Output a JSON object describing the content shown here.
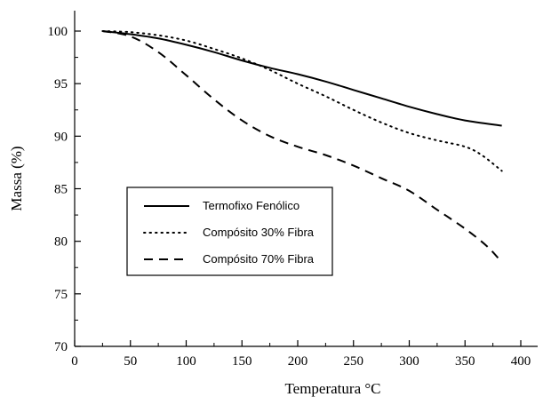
{
  "chart_data": {
    "type": "line",
    "title": "",
    "xlabel": "Temperatura °C",
    "ylabel": "Massa (%)",
    "xlim": [
      0,
      420
    ],
    "ylim": [
      70,
      102
    ],
    "xticks": [
      0,
      50,
      100,
      150,
      200,
      250,
      300,
      350,
      400
    ],
    "yticks": [
      70,
      75,
      80,
      85,
      90,
      95,
      100
    ],
    "legend_position": "center-left",
    "grid": false,
    "series": [
      {
        "name": "Termofixo Fenólico",
        "style": "solid",
        "color": "#000000",
        "x": [
          25,
          50,
          75,
          100,
          125,
          150,
          175,
          200,
          225,
          250,
          275,
          300,
          325,
          350,
          383
        ],
        "y": [
          100.0,
          99.7,
          99.3,
          98.7,
          98.0,
          97.2,
          96.5,
          95.9,
          95.2,
          94.4,
          93.6,
          92.8,
          92.1,
          91.5,
          91.0
        ]
      },
      {
        "name": "Compósito 30% Fibra",
        "style": "dotted",
        "color": "#000000",
        "x": [
          25,
          50,
          75,
          100,
          125,
          150,
          175,
          200,
          225,
          250,
          275,
          300,
          325,
          350,
          365,
          383
        ],
        "y": [
          100.0,
          99.9,
          99.6,
          99.1,
          98.3,
          97.4,
          96.3,
          95.0,
          93.8,
          92.5,
          91.3,
          90.3,
          89.6,
          89.0,
          88.2,
          86.7
        ]
      },
      {
        "name": "Compósito 70% Fibra",
        "style": "dashed",
        "color": "#000000",
        "x": [
          25,
          50,
          75,
          100,
          125,
          150,
          175,
          200,
          225,
          250,
          275,
          300,
          325,
          350,
          370,
          383
        ],
        "y": [
          100.0,
          99.5,
          98.0,
          95.8,
          93.5,
          91.5,
          90.0,
          89.0,
          88.2,
          87.2,
          86.0,
          84.8,
          83.0,
          81.2,
          79.5,
          78.0
        ]
      }
    ]
  }
}
